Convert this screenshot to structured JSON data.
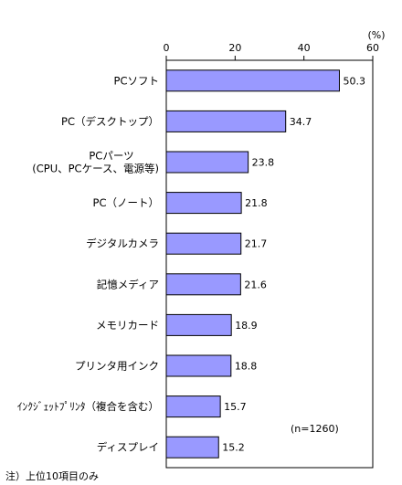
{
  "chart_data": {
    "type": "bar",
    "orientation": "horizontal",
    "unit": "(%)",
    "xlim": [
      0,
      60
    ],
    "ticks": [
      0,
      20,
      40,
      60
    ],
    "grid": false,
    "categories": [
      [
        "PCソフト"
      ],
      [
        "PC（デスクトップ）"
      ],
      [
        "PCパーツ",
        "(CPU、PCケース、電源等)"
      ],
      [
        "PC（ノート）"
      ],
      [
        "デジタルカメラ"
      ],
      [
        "記憶メディア"
      ],
      [
        "メモリカード"
      ],
      [
        "プリンタ用インク"
      ],
      [
        "ｲﾝｸｼﾞｪｯﾄﾌﾟﾘﾝﾀ（複合を含む）"
      ],
      [
        "ディスプレイ"
      ]
    ],
    "values": [
      50.3,
      34.7,
      23.8,
      21.8,
      21.7,
      21.6,
      18.9,
      18.8,
      15.7,
      15.2
    ],
    "value_labels": [
      "50.3",
      "34.7",
      "23.8",
      "21.8",
      "21.7",
      "21.6",
      "18.9",
      "18.8",
      "15.7",
      "15.2"
    ],
    "sample_note": "(n=1260)",
    "footnote": "注）上位10項目のみ",
    "colors": {
      "bar_fill": "#9999ff",
      "bar_stroke": "#000000",
      "frame": "#000000"
    }
  }
}
